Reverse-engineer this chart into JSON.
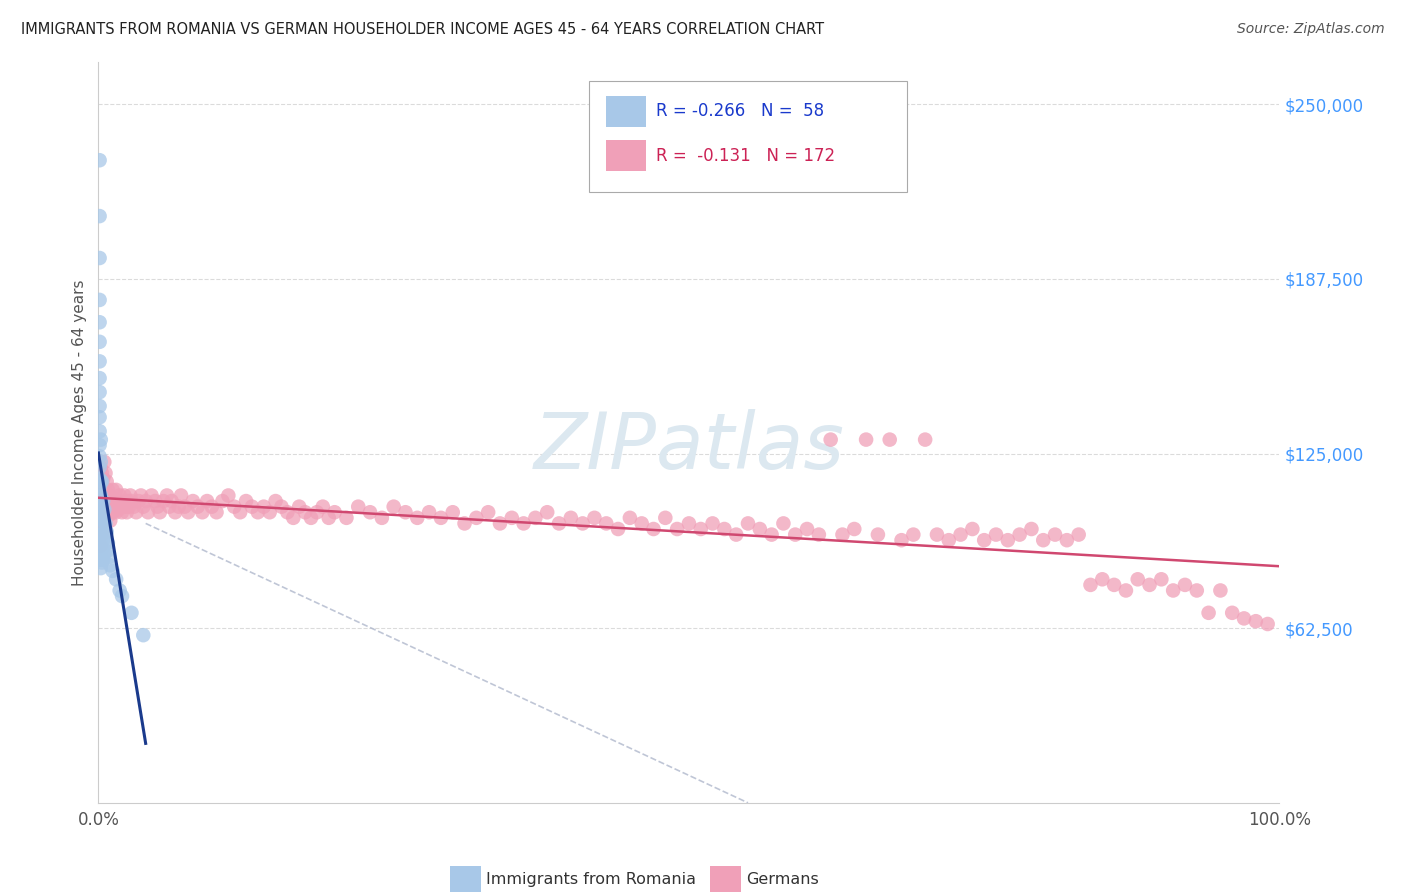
{
  "title": "IMMIGRANTS FROM ROMANIA VS GERMAN HOUSEHOLDER INCOME AGES 45 - 64 YEARS CORRELATION CHART",
  "source": "Source: ZipAtlas.com",
  "ylabel": "Householder Income Ages 45 - 64 years",
  "y_tick_labels": [
    "$62,500",
    "$125,000",
    "$187,500",
    "$250,000"
  ],
  "y_tick_values": [
    62500,
    125000,
    187500,
    250000
  ],
  "ylim": [
    0,
    265000
  ],
  "xlim": [
    0.0,
    1.0
  ],
  "color_romania": "#a8c8e8",
  "color_romania_line": "#1a3a8c",
  "color_germany": "#f0a0b8",
  "color_germany_line": "#d04870",
  "color_dashed": "#b0b8cc",
  "watermark_color": "#dce8f0",
  "grid_color": "#cccccc",
  "title_color": "#222222",
  "source_color": "#555555",
  "tick_color": "#555555",
  "right_tick_color": "#4499ff",
  "romania_x": [
    0.001,
    0.001,
    0.001,
    0.001,
    0.001,
    0.001,
    0.001,
    0.001,
    0.001,
    0.001,
    0.001,
    0.001,
    0.001,
    0.001,
    0.001,
    0.001,
    0.001,
    0.001,
    0.001,
    0.001,
    0.002,
    0.002,
    0.002,
    0.002,
    0.002,
    0.002,
    0.002,
    0.002,
    0.002,
    0.002,
    0.002,
    0.002,
    0.003,
    0.003,
    0.003,
    0.003,
    0.003,
    0.003,
    0.004,
    0.004,
    0.004,
    0.004,
    0.005,
    0.005,
    0.005,
    0.006,
    0.006,
    0.007,
    0.007,
    0.008,
    0.009,
    0.01,
    0.012,
    0.015,
    0.018,
    0.02,
    0.028,
    0.038
  ],
  "romania_y": [
    230000,
    210000,
    195000,
    180000,
    172000,
    165000,
    158000,
    152000,
    147000,
    142000,
    138000,
    133000,
    128000,
    124000,
    120000,
    116000,
    113000,
    110000,
    107000,
    104000,
    130000,
    122000,
    115000,
    110000,
    106000,
    102000,
    99000,
    96000,
    93000,
    90000,
    87000,
    84000,
    115000,
    108000,
    101000,
    96000,
    91000,
    86000,
    108000,
    101000,
    94000,
    87000,
    105000,
    97000,
    89000,
    100000,
    93000,
    97000,
    90000,
    93000,
    88000,
    85000,
    83000,
    80000,
    76000,
    74000,
    68000,
    60000
  ],
  "german_x": [
    0.001,
    0.001,
    0.001,
    0.002,
    0.002,
    0.002,
    0.002,
    0.003,
    0.003,
    0.003,
    0.003,
    0.004,
    0.004,
    0.004,
    0.005,
    0.005,
    0.005,
    0.006,
    0.006,
    0.007,
    0.007,
    0.008,
    0.008,
    0.009,
    0.009,
    0.01,
    0.01,
    0.011,
    0.012,
    0.012,
    0.013,
    0.014,
    0.015,
    0.015,
    0.016,
    0.017,
    0.018,
    0.019,
    0.02,
    0.021,
    0.022,
    0.023,
    0.024,
    0.025,
    0.026,
    0.027,
    0.028,
    0.03,
    0.032,
    0.034,
    0.036,
    0.038,
    0.04,
    0.042,
    0.045,
    0.048,
    0.05,
    0.052,
    0.055,
    0.058,
    0.06,
    0.062,
    0.065,
    0.068,
    0.07,
    0.073,
    0.076,
    0.08,
    0.084,
    0.088,
    0.092,
    0.096,
    0.1,
    0.105,
    0.11,
    0.115,
    0.12,
    0.125,
    0.13,
    0.135,
    0.14,
    0.145,
    0.15,
    0.155,
    0.16,
    0.165,
    0.17,
    0.175,
    0.18,
    0.185,
    0.19,
    0.195,
    0.2,
    0.21,
    0.22,
    0.23,
    0.24,
    0.25,
    0.26,
    0.27,
    0.28,
    0.29,
    0.3,
    0.31,
    0.32,
    0.33,
    0.34,
    0.35,
    0.36,
    0.37,
    0.38,
    0.39,
    0.4,
    0.41,
    0.42,
    0.43,
    0.44,
    0.45,
    0.46,
    0.47,
    0.48,
    0.49,
    0.5,
    0.51,
    0.52,
    0.53,
    0.54,
    0.55,
    0.56,
    0.57,
    0.58,
    0.59,
    0.6,
    0.61,
    0.62,
    0.63,
    0.64,
    0.65,
    0.66,
    0.67,
    0.68,
    0.69,
    0.7,
    0.71,
    0.72,
    0.73,
    0.74,
    0.75,
    0.76,
    0.77,
    0.78,
    0.79,
    0.8,
    0.81,
    0.82,
    0.83,
    0.84,
    0.85,
    0.86,
    0.87,
    0.88,
    0.89,
    0.9,
    0.91,
    0.92,
    0.93,
    0.94,
    0.95,
    0.96,
    0.97,
    0.98,
    0.99
  ],
  "german_y": [
    115000,
    105000,
    95000,
    120000,
    108000,
    100000,
    92000,
    118000,
    110000,
    103000,
    96000,
    116000,
    108000,
    100000,
    122000,
    112000,
    104000,
    118000,
    110000,
    115000,
    107000,
    112000,
    105000,
    110000,
    103000,
    108000,
    101000,
    106000,
    112000,
    104000,
    109000,
    106000,
    104000,
    112000,
    108000,
    105000,
    110000,
    106000,
    104000,
    108000,
    110000,
    106000,
    104000,
    108000,
    106000,
    110000,
    108000,
    106000,
    104000,
    108000,
    110000,
    106000,
    108000,
    104000,
    110000,
    108000,
    106000,
    104000,
    108000,
    110000,
    106000,
    108000,
    104000,
    106000,
    110000,
    106000,
    104000,
    108000,
    106000,
    104000,
    108000,
    106000,
    104000,
    108000,
    110000,
    106000,
    104000,
    108000,
    106000,
    104000,
    106000,
    104000,
    108000,
    106000,
    104000,
    102000,
    106000,
    104000,
    102000,
    104000,
    106000,
    102000,
    104000,
    102000,
    106000,
    104000,
    102000,
    106000,
    104000,
    102000,
    104000,
    102000,
    104000,
    100000,
    102000,
    104000,
    100000,
    102000,
    100000,
    102000,
    104000,
    100000,
    102000,
    100000,
    102000,
    100000,
    98000,
    102000,
    100000,
    98000,
    102000,
    98000,
    100000,
    98000,
    100000,
    98000,
    96000,
    100000,
    98000,
    96000,
    100000,
    96000,
    98000,
    96000,
    130000,
    96000,
    98000,
    130000,
    96000,
    130000,
    94000,
    96000,
    130000,
    96000,
    94000,
    96000,
    98000,
    94000,
    96000,
    94000,
    96000,
    98000,
    94000,
    96000,
    94000,
    96000,
    78000,
    80000,
    78000,
    76000,
    80000,
    78000,
    80000,
    76000,
    78000,
    76000,
    68000,
    76000,
    68000,
    66000,
    65000,
    64000
  ]
}
